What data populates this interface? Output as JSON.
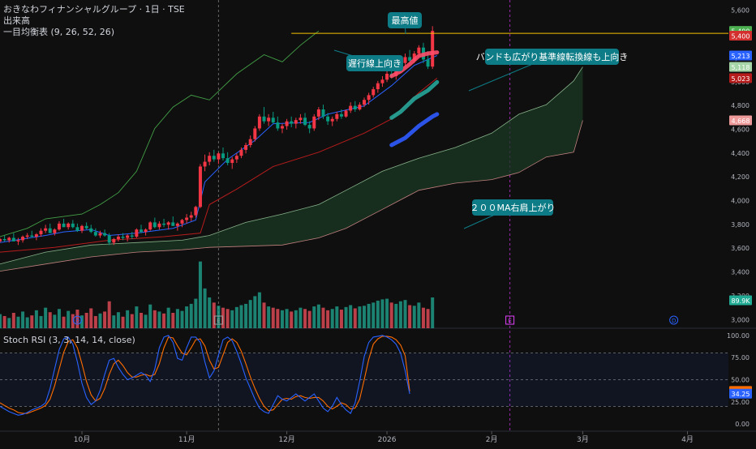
{
  "header": {
    "title": "おきなわフィナンシャルグループ · 1日 · TSE",
    "volume_label": "出来高",
    "ichimoku_label": "一目均衡表 (9, 26, 52, 26)"
  },
  "colors": {
    "background": "#0f0f0f",
    "up": "#f23645",
    "down": "#089981",
    "volume_up": "#22ab94",
    "volume_down": "#f7525f",
    "conversion_line": "#2962ff",
    "base_line": "#b71c1c",
    "lagging_span": "#43a047",
    "span_a": "#a5d6a7",
    "span_b": "#ef9a9a",
    "cloud": "#1b3a24",
    "highlight_red": "#ff4d6a",
    "highlight_teal": "#26a69a",
    "highlight_blue": "#2f5bff",
    "callout": "#0e7c86",
    "high_line": "#f5c400",
    "stoch_k": "#2962ff",
    "stoch_d": "#ff6d00"
  },
  "price_axis": {
    "ticks": [
      "5,600",
      "5,400",
      "5,200",
      "5,000",
      "4,800",
      "4,600",
      "4,400",
      "4,200",
      "4,000",
      "3,800",
      "3,600",
      "3,400",
      "3,200",
      "3,000"
    ],
    "badges": [
      {
        "label": "5,400",
        "color": "#4caf50",
        "value": 5420
      },
      {
        "label": "5,400",
        "color": "#d32f2f",
        "value": 5380
      },
      {
        "label": "5,213",
        "color": "#2962ff",
        "value": 5213
      },
      {
        "label": "5,118",
        "color": "#a5d6a7",
        "value": 5118
      },
      {
        "label": "5,023",
        "color": "#b71c1c",
        "value": 5023
      },
      {
        "label": "4,668",
        "color": "#ef9a9a",
        "value": 4668
      },
      {
        "label": "89.9K",
        "color": "#22ab94",
        "value": 3155
      }
    ]
  },
  "stoch_axis": {
    "ticks": [
      "100.00",
      "75.00",
      "50.00",
      "25.00",
      "0.00"
    ],
    "badges": [
      {
        "label": "37.36",
        "color": "#ff6d00",
        "value": 37.36
      },
      {
        "label": "34.25",
        "color": "#2962ff",
        "value": 34.25
      }
    ]
  },
  "time_axis": {
    "labels": [
      {
        "text": "10月",
        "day": 18
      },
      {
        "text": "11月",
        "day": 41
      },
      {
        "text": "12月",
        "day": 63
      },
      {
        "text": "2026",
        "day": 85
      },
      {
        "text": "2月",
        "day": 108
      },
      {
        "text": "3月",
        "day": 128
      },
      {
        "text": "4月",
        "day": 151
      }
    ]
  },
  "event_markers": [
    {
      "letter": "D",
      "day": 17,
      "color": "#2962ff"
    },
    {
      "letter": "E",
      "day": 48,
      "color": "#9e9e9e"
    },
    {
      "letter": "E",
      "day": 112,
      "color": "#e040fb"
    },
    {
      "letter": "D",
      "day": 148,
      "color": "#2962ff"
    }
  ],
  "annotations": {
    "high_label": "最高値",
    "lagging_label": "遅行線上向き",
    "band_label": "バンドも広がり基準線転換線も上向き",
    "ma_label": "２００MA右肩上がり"
  },
  "stoch_panel": {
    "label": "Stoch RSI (3, 3, 14, 14, close)"
  },
  "chart_data": {
    "type": "candlestick",
    "title": "おきなわフィナンシャルグループ · 1日 · TSE",
    "y_range": [
      2920,
      5680
    ],
    "x_range_days": [
      0,
      160
    ],
    "grid": false,
    "all_time_high": 5400,
    "candles": [
      [
        3650,
        3680,
        3640,
        3670
      ],
      [
        3670,
        3700,
        3650,
        3660
      ],
      [
        3660,
        3690,
        3640,
        3680
      ],
      [
        3680,
        3720,
        3660,
        3650
      ],
      [
        3650,
        3680,
        3620,
        3660
      ],
      [
        3660,
        3700,
        3640,
        3690
      ],
      [
        3690,
        3720,
        3670,
        3700
      ],
      [
        3700,
        3740,
        3680,
        3690
      ],
      [
        3690,
        3720,
        3660,
        3710
      ],
      [
        3710,
        3760,
        3690,
        3740
      ],
      [
        3740,
        3790,
        3720,
        3760
      ],
      [
        3760,
        3800,
        3730,
        3720
      ],
      [
        3720,
        3760,
        3700,
        3750
      ],
      [
        3750,
        3820,
        3740,
        3800
      ],
      [
        3800,
        3840,
        3770,
        3770
      ],
      [
        3770,
        3810,
        3750,
        3800
      ],
      [
        3800,
        3830,
        3760,
        3770
      ],
      [
        3770,
        3800,
        3730,
        3740
      ],
      [
        3740,
        3790,
        3720,
        3780
      ],
      [
        3780,
        3810,
        3750,
        3760
      ],
      [
        3760,
        3790,
        3720,
        3730
      ],
      [
        3730,
        3760,
        3690,
        3700
      ],
      [
        3700,
        3740,
        3680,
        3720
      ],
      [
        3720,
        3750,
        3690,
        3700
      ],
      [
        3700,
        3720,
        3620,
        3640
      ],
      [
        3640,
        3680,
        3620,
        3670
      ],
      [
        3670,
        3710,
        3650,
        3690
      ],
      [
        3690,
        3720,
        3660,
        3680
      ],
      [
        3680,
        3710,
        3650,
        3700
      ],
      [
        3700,
        3730,
        3670,
        3690
      ],
      [
        3690,
        3760,
        3680,
        3750
      ],
      [
        3750,
        3790,
        3720,
        3730
      ],
      [
        3730,
        3760,
        3700,
        3750
      ],
      [
        3750,
        3820,
        3740,
        3810
      ],
      [
        3810,
        3850,
        3760,
        3770
      ],
      [
        3770,
        3820,
        3750,
        3800
      ],
      [
        3800,
        3840,
        3770,
        3790
      ],
      [
        3790,
        3820,
        3750,
        3810
      ],
      [
        3810,
        3860,
        3780,
        3780
      ],
      [
        3780,
        3810,
        3740,
        3800
      ],
      [
        3800,
        3840,
        3770,
        3830
      ],
      [
        3830,
        3880,
        3800,
        3850
      ],
      [
        3850,
        3900,
        3820,
        3870
      ],
      [
        3870,
        3950,
        3850,
        3940
      ],
      [
        3940,
        4300,
        3930,
        4280
      ],
      [
        4280,
        4380,
        4240,
        4320
      ],
      [
        4320,
        4400,
        4290,
        4370
      ],
      [
        4370,
        4420,
        4320,
        4340
      ],
      [
        4340,
        4400,
        4300,
        4390
      ],
      [
        4390,
        4440,
        4330,
        4350
      ],
      [
        4350,
        4400,
        4290,
        4310
      ],
      [
        4310,
        4360,
        4260,
        4340
      ],
      [
        4340,
        4390,
        4310,
        4370
      ],
      [
        4370,
        4440,
        4350,
        4420
      ],
      [
        4420,
        4480,
        4390,
        4460
      ],
      [
        4460,
        4540,
        4440,
        4510
      ],
      [
        4510,
        4620,
        4490,
        4600
      ],
      [
        4600,
        4720,
        4580,
        4700
      ],
      [
        4700,
        4780,
        4640,
        4660
      ],
      [
        4660,
        4720,
        4620,
        4690
      ],
      [
        4690,
        4740,
        4640,
        4650
      ],
      [
        4650,
        4700,
        4580,
        4600
      ],
      [
        4600,
        4640,
        4560,
        4620
      ],
      [
        4620,
        4680,
        4590,
        4660
      ],
      [
        4660,
        4700,
        4610,
        4640
      ],
      [
        4640,
        4690,
        4600,
        4670
      ],
      [
        4670,
        4720,
        4640,
        4690
      ],
      [
        4690,
        4730,
        4620,
        4630
      ],
      [
        4630,
        4660,
        4560,
        4600
      ],
      [
        4600,
        4720,
        4580,
        4700
      ],
      [
        4700,
        4780,
        4670,
        4760
      ],
      [
        4760,
        4800,
        4680,
        4700
      ],
      [
        4700,
        4730,
        4630,
        4660
      ],
      [
        4660,
        4700,
        4620,
        4680
      ],
      [
        4680,
        4740,
        4660,
        4720
      ],
      [
        4720,
        4760,
        4680,
        4700
      ],
      [
        4700,
        4760,
        4690,
        4750
      ],
      [
        4750,
        4820,
        4730,
        4790
      ],
      [
        4790,
        4830,
        4740,
        4760
      ],
      [
        4760,
        4820,
        4750,
        4800
      ],
      [
        4800,
        4860,
        4780,
        4840
      ],
      [
        4840,
        4900,
        4800,
        4880
      ],
      [
        4880,
        4950,
        4860,
        4930
      ],
      [
        4930,
        5000,
        4900,
        4980
      ],
      [
        4980,
        5040,
        4950,
        5010
      ],
      [
        5010,
        5080,
        4990,
        5060
      ],
      [
        5060,
        5120,
        5020,
        5040
      ],
      [
        5040,
        5100,
        5010,
        5090
      ],
      [
        5090,
        5170,
        5070,
        5150
      ],
      [
        5150,
        5230,
        5120,
        5200
      ],
      [
        5200,
        5260,
        5140,
        5170
      ],
      [
        5170,
        5250,
        5150,
        5230
      ],
      [
        5230,
        5300,
        5200,
        5280
      ],
      [
        5280,
        5320,
        5150,
        5180
      ],
      [
        5180,
        5250,
        5100,
        5120
      ],
      [
        5120,
        5460,
        5100,
        5420
      ]
    ],
    "volume": [
      110,
      95,
      80,
      120,
      90,
      130,
      85,
      100,
      140,
      95,
      160,
      125,
      105,
      150,
      90,
      135,
      110,
      145,
      100,
      120,
      155,
      95,
      115,
      130,
      210,
      100,
      125,
      90,
      140,
      110,
      170,
      120,
      105,
      185,
      140,
      130,
      115,
      160,
      120,
      150,
      135,
      170,
      190,
      230,
      520,
      310,
      240,
      200,
      175,
      160,
      150,
      140,
      165,
      180,
      190,
      220,
      250,
      280,
      200,
      170,
      160,
      150,
      140,
      150,
      130,
      140,
      160,
      150,
      135,
      170,
      185,
      160,
      140,
      150,
      170,
      145,
      165,
      180,
      155,
      170,
      175,
      190,
      200,
      215,
      225,
      230,
      200,
      190,
      210,
      220,
      180,
      175,
      200,
      160,
      150,
      240
    ],
    "stoch_k": [
      20,
      17,
      14,
      12,
      10,
      11,
      13,
      16,
      18,
      20,
      24,
      40,
      62,
      84,
      96,
      98,
      90,
      70,
      46,
      30,
      22,
      26,
      38,
      56,
      72,
      74,
      64,
      56,
      50,
      52,
      55,
      58,
      55,
      48,
      62,
      86,
      98,
      100,
      92,
      74,
      72,
      86,
      98,
      98,
      92,
      70,
      52,
      60,
      78,
      95,
      98,
      94,
      82,
      68,
      52,
      40,
      28,
      18,
      14,
      12,
      22,
      32,
      28,
      26,
      30,
      34,
      30,
      26,
      30,
      34,
      26,
      18,
      14,
      20,
      30,
      22,
      16,
      12,
      24,
      48,
      76,
      92,
      98,
      99,
      100,
      98,
      95,
      90,
      80,
      60,
      34
    ],
    "stoch_d": [
      24,
      21,
      18,
      16,
      13,
      12,
      12,
      14,
      16,
      18,
      21,
      28,
      43,
      62,
      81,
      93,
      95,
      86,
      68,
      48,
      33,
      26,
      29,
      40,
      56,
      68,
      72,
      66,
      58,
      53,
      53,
      55,
      56,
      54,
      56,
      68,
      86,
      98,
      97,
      88,
      80,
      78,
      86,
      95,
      96,
      88,
      72,
      62,
      64,
      78,
      92,
      96,
      92,
      82,
      68,
      53,
      40,
      29,
      20,
      15,
      16,
      22,
      28,
      29,
      28,
      31,
      32,
      30,
      29,
      30,
      30,
      26,
      20,
      17,
      20,
      24,
      22,
      17,
      18,
      28,
      50,
      73,
      90,
      96,
      99,
      99,
      98,
      95,
      89,
      77,
      37
    ],
    "conversion_line": [
      [
        0,
        3640
      ],
      [
        10,
        3700
      ],
      [
        14,
        3730
      ],
      [
        20,
        3750
      ],
      [
        24,
        3700
      ],
      [
        30,
        3720
      ],
      [
        38,
        3760
      ],
      [
        43,
        3830
      ],
      [
        45,
        4150
      ],
      [
        50,
        4340
      ],
      [
        56,
        4500
      ],
      [
        60,
        4640
      ],
      [
        68,
        4650
      ],
      [
        72,
        4720
      ],
      [
        80,
        4790
      ],
      [
        86,
        4960
      ],
      [
        91,
        5130
      ],
      [
        96,
        5213
      ]
    ],
    "base_line": [
      [
        0,
        3560
      ],
      [
        12,
        3600
      ],
      [
        24,
        3660
      ],
      [
        36,
        3690
      ],
      [
        44,
        3720
      ],
      [
        46,
        3960
      ],
      [
        52,
        4090
      ],
      [
        60,
        4280
      ],
      [
        70,
        4400
      ],
      [
        80,
        4560
      ],
      [
        86,
        4680
      ],
      [
        92,
        4900
      ],
      [
        96,
        5023
      ]
    ],
    "lagging_span": [
      [
        0,
        3690
      ],
      [
        6,
        3760
      ],
      [
        10,
        3840
      ],
      [
        14,
        3860
      ],
      [
        18,
        3880
      ],
      [
        22,
        3960
      ],
      [
        26,
        4060
      ],
      [
        30,
        4240
      ],
      [
        34,
        4600
      ],
      [
        38,
        4780
      ],
      [
        42,
        4880
      ],
      [
        46,
        4840
      ],
      [
        52,
        5060
      ],
      [
        58,
        5220
      ],
      [
        62,
        5160
      ],
      [
        66,
        5300
      ],
      [
        70,
        5420
      ]
    ],
    "span_a": [
      [
        0,
        3460
      ],
      [
        10,
        3560
      ],
      [
        20,
        3620
      ],
      [
        30,
        3640
      ],
      [
        40,
        3660
      ],
      [
        46,
        3700
      ],
      [
        54,
        3810
      ],
      [
        62,
        3880
      ],
      [
        70,
        3960
      ],
      [
        76,
        4080
      ],
      [
        84,
        4240
      ],
      [
        92,
        4350
      ],
      [
        100,
        4440
      ],
      [
        108,
        4560
      ],
      [
        114,
        4720
      ],
      [
        120,
        4800
      ],
      [
        126,
        5000
      ],
      [
        128,
        5118
      ]
    ],
    "span_b": [
      [
        0,
        3400
      ],
      [
        10,
        3460
      ],
      [
        20,
        3520
      ],
      [
        30,
        3560
      ],
      [
        40,
        3580
      ],
      [
        46,
        3600
      ],
      [
        54,
        3610
      ],
      [
        62,
        3620
      ],
      [
        70,
        3680
      ],
      [
        76,
        3760
      ],
      [
        84,
        3920
      ],
      [
        92,
        4080
      ],
      [
        100,
        4140
      ],
      [
        108,
        4170
      ],
      [
        114,
        4230
      ],
      [
        120,
        4360
      ],
      [
        126,
        4400
      ],
      [
        128,
        4668
      ]
    ],
    "stoch_bands": {
      "upper": 80,
      "middle": 50,
      "lower": 20
    },
    "stoch_range": [
      -8,
      108
    ]
  }
}
